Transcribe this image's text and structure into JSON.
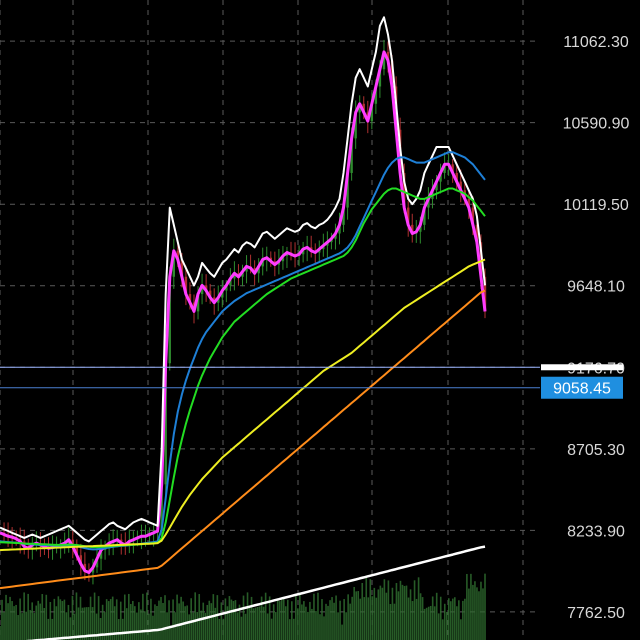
{
  "colors": {
    "background": "#000000",
    "grid": "#5a5a5a",
    "candle_up": "#2e8b2e",
    "candle_down": "#b03030",
    "price_line": "#4a7fd1",
    "price_badge": "#1f8fe0",
    "ref_line_badge": "#ffffff"
  },
  "chart_data": {
    "type": "line",
    "ylim": [
      7600,
      11300
    ],
    "y_ticks": [
      "11062.30",
      "10590.90",
      "10119.50",
      "9648.10",
      "9176.70",
      "8705.30",
      "8233.90",
      "7762.50"
    ],
    "y_tick_values": [
      11062.3,
      10590.9,
      10119.5,
      9648.1,
      9176.7,
      8705.3,
      8233.9,
      7762.5
    ],
    "current_price": "9058.45",
    "current_price_value": 9058.45,
    "reference_level": 9176.7,
    "x_count": 121,
    "grid": true,
    "series": [
      {
        "color": "#ff3cff",
        "values": [
          8220,
          8210,
          8200,
          8195,
          8185,
          8170,
          8140,
          8130,
          8150,
          8160,
          8150,
          8140,
          8130,
          8135,
          8140,
          8150,
          8160,
          8180,
          8140,
          8090,
          8040,
          8000,
          7990,
          8020,
          8070,
          8120,
          8140,
          8160,
          8170,
          8180,
          8160,
          8150,
          8170,
          8180,
          8190,
          8200,
          8200,
          8210,
          8220,
          8230,
          8500,
          9200,
          9700,
          9850,
          9800,
          9700,
          9600,
          9550,
          9500,
          9600,
          9650,
          9620,
          9580,
          9550,
          9580,
          9620,
          9650,
          9690,
          9720,
          9700,
          9730,
          9760,
          9750,
          9720,
          9760,
          9800,
          9810,
          9790,
          9770,
          9790,
          9820,
          9840,
          9830,
          9820,
          9830,
          9860,
          9870,
          9850,
          9840,
          9860,
          9880,
          9900,
          9920,
          9950,
          10000,
          10100,
          10300,
          10500,
          10650,
          10700,
          10650,
          10600,
          10700,
          10800,
          10900,
          11000,
          10950,
          10800,
          10550,
          10300,
          10100,
          10000,
          9950,
          9960,
          10000,
          10100,
          10150,
          10200,
          10250,
          10300,
          10350,
          10350,
          10300,
          10250,
          10200,
          10150,
          10100,
          10000,
          9900,
          9700,
          9500
        ]
      },
      {
        "color": "#ffffff",
        "values": [
          8250,
          8240,
          8230,
          8220,
          8210,
          8200,
          8190,
          8200,
          8210,
          8200,
          8190,
          8200,
          8210,
          8220,
          8230,
          8240,
          8250,
          8260,
          8240,
          8220,
          8200,
          8180,
          8170,
          8190,
          8210,
          8230,
          8250,
          8270,
          8280,
          8260,
          8250,
          8240,
          8260,
          8280,
          8290,
          8300,
          8290,
          8280,
          8270,
          8260,
          8700,
          9600,
          10100,
          10000,
          9900,
          9800,
          9750,
          9700,
          9650,
          9700,
          9780,
          9750,
          9720,
          9700,
          9740,
          9780,
          9800,
          9830,
          9860,
          9840,
          9880,
          9900,
          9890,
          9870,
          9910,
          9950,
          9960,
          9940,
          9920,
          9940,
          9960,
          9980,
          9970,
          9960,
          9970,
          10000,
          10010,
          9990,
          9980,
          10000,
          10010,
          10030,
          10060,
          10100,
          10150,
          10300,
          10500,
          10700,
          10850,
          10900,
          10850,
          10800,
          10900,
          11000,
          11150,
          11200,
          11100,
          10950,
          10700,
          10450,
          10250,
          10150,
          10120,
          10150,
          10200,
          10300,
          10350,
          10400,
          10450,
          10450,
          10450,
          10450,
          10400,
          10350,
          10300,
          10250,
          10200,
          10150,
          10050,
          9850,
          9650
        ]
      },
      {
        "color": "#1e7fd6",
        "values": [
          8170,
          8168,
          8166,
          8164,
          8162,
          8160,
          8157,
          8155,
          8153,
          8151,
          8150,
          8149,
          8148,
          8147,
          8146,
          8146,
          8147,
          8148,
          8146,
          8142,
          8137,
          8131,
          8126,
          8124,
          8125,
          8128,
          8131,
          8135,
          8139,
          8142,
          8144,
          8146,
          8148,
          8151,
          8154,
          8157,
          8160,
          8163,
          8166,
          8170,
          8240,
          8420,
          8620,
          8790,
          8920,
          9020,
          9100,
          9170,
          9230,
          9290,
          9340,
          9380,
          9410,
          9440,
          9470,
          9500,
          9520,
          9540,
          9560,
          9575,
          9590,
          9605,
          9615,
          9625,
          9635,
          9645,
          9655,
          9665,
          9675,
          9685,
          9695,
          9705,
          9715,
          9725,
          9735,
          9745,
          9755,
          9765,
          9775,
          9785,
          9795,
          9805,
          9815,
          9825,
          9835,
          9850,
          9870,
          9900,
          9940,
          9990,
          10040,
          10090,
          10140,
          10190,
          10240,
          10290,
          10330,
          10360,
          10380,
          10390,
          10390,
          10380,
          10370,
          10360,
          10360,
          10360,
          10370,
          10380,
          10390,
          10400,
          10410,
          10420,
          10420,
          10410,
          10400,
          10390,
          10370,
          10350,
          10320,
          10290,
          10260
        ]
      },
      {
        "color": "#22dd22",
        "values": [
          8165,
          8164,
          8163,
          8162,
          8161,
          8160,
          8158,
          8157,
          8156,
          8155,
          8154,
          8153,
          8152,
          8151,
          8150,
          8150,
          8151,
          8152,
          8151,
          8149,
          8146,
          8142,
          8139,
          8137,
          8137,
          8138,
          8140,
          8142,
          8144,
          8146,
          8147,
          8148,
          8149,
          8150,
          8152,
          8154,
          8156,
          8158,
          8160,
          8162,
          8190,
          8280,
          8410,
          8540,
          8660,
          8760,
          8850,
          8930,
          9000,
          9070,
          9130,
          9180,
          9230,
          9270,
          9310,
          9350,
          9380,
          9410,
          9440,
          9460,
          9480,
          9500,
          9520,
          9540,
          9560,
          9580,
          9600,
          9615,
          9630,
          9645,
          9660,
          9675,
          9690,
          9700,
          9710,
          9720,
          9730,
          9740,
          9750,
          9760,
          9770,
          9780,
          9790,
          9800,
          9810,
          9820,
          9840,
          9870,
          9910,
          9960,
          10010,
          10050,
          10090,
          10120,
          10150,
          10180,
          10200,
          10210,
          10210,
          10200,
          10190,
          10180,
          10170,
          10160,
          10150,
          10150,
          10160,
          10170,
          10180,
          10190,
          10200,
          10210,
          10210,
          10200,
          10190,
          10180,
          10160,
          10140,
          10110,
          10080,
          10050
        ]
      },
      {
        "color": "#eeee22",
        "values": [
          8120,
          8121,
          8122,
          8123,
          8124,
          8125,
          8126,
          8127,
          8128,
          8129,
          8130,
          8131,
          8132,
          8133,
          8134,
          8135,
          8136,
          8137,
          8138,
          8139,
          8140,
          8141,
          8142,
          8143,
          8144,
          8145,
          8146,
          8147,
          8148,
          8149,
          8150,
          8151,
          8152,
          8153,
          8154,
          8155,
          8156,
          8157,
          8158,
          8160,
          8175,
          8210,
          8250,
          8290,
          8330,
          8370,
          8405,
          8440,
          8470,
          8500,
          8530,
          8555,
          8580,
          8605,
          8630,
          8655,
          8675,
          8695,
          8715,
          8735,
          8755,
          8775,
          8795,
          8815,
          8835,
          8855,
          8875,
          8895,
          8915,
          8935,
          8955,
          8975,
          8995,
          9015,
          9035,
          9055,
          9075,
          9095,
          9115,
          9135,
          9155,
          9170,
          9185,
          9200,
          9215,
          9230,
          9245,
          9260,
          9280,
          9300,
          9320,
          9340,
          9360,
          9380,
          9400,
          9420,
          9440,
          9460,
          9480,
          9500,
          9520,
          9535,
          9550,
          9565,
          9580,
          9595,
          9610,
          9625,
          9640,
          9655,
          9670,
          9685,
          9700,
          9715,
          9730,
          9745,
          9760,
          9770,
          9780,
          9790,
          9800
        ]
      },
      {
        "color": "#ff8c1a",
        "values": [
          7900,
          7903,
          7906,
          7909,
          7912,
          7915,
          7918,
          7921,
          7924,
          7927,
          7930,
          7933,
          7936,
          7939,
          7942,
          7945,
          7948,
          7951,
          7954,
          7957,
          7960,
          7963,
          7966,
          7969,
          7972,
          7975,
          7978,
          7981,
          7984,
          7987,
          7990,
          7993,
          7996,
          7999,
          8002,
          8005,
          8008,
          8011,
          8014,
          8017,
          8030,
          8050,
          8070,
          8090,
          8110,
          8130,
          8150,
          8170,
          8190,
          8210,
          8230,
          8250,
          8270,
          8290,
          8310,
          8330,
          8350,
          8370,
          8390,
          8410,
          8430,
          8450,
          8470,
          8490,
          8510,
          8530,
          8550,
          8570,
          8590,
          8610,
          8630,
          8650,
          8670,
          8690,
          8710,
          8730,
          8750,
          8770,
          8790,
          8810,
          8830,
          8850,
          8870,
          8890,
          8910,
          8930,
          8950,
          8970,
          8990,
          9010,
          9030,
          9050,
          9070,
          9090,
          9110,
          9130,
          9150,
          9170,
          9190,
          9210,
          9230,
          9250,
          9270,
          9290,
          9310,
          9330,
          9350,
          9370,
          9390,
          9410,
          9430,
          9450,
          9470,
          9490,
          9510,
          9530,
          9550,
          9570,
          9590,
          9610,
          9620
        ]
      },
      {
        "color": "#ffffff",
        "values": [
          7580,
          7582,
          7584,
          7586,
          7588,
          7590,
          7592,
          7594,
          7596,
          7598,
          7600,
          7602,
          7604,
          7606,
          7608,
          7610,
          7612,
          7614,
          7616,
          7618,
          7620,
          7622,
          7624,
          7626,
          7628,
          7630,
          7632,
          7634,
          7636,
          7638,
          7640,
          7642,
          7644,
          7646,
          7648,
          7650,
          7652,
          7654,
          7656,
          7658,
          7662,
          7668,
          7674,
          7680,
          7686,
          7692,
          7698,
          7704,
          7710,
          7716,
          7722,
          7728,
          7734,
          7740,
          7746,
          7752,
          7758,
          7764,
          7770,
          7776,
          7782,
          7788,
          7794,
          7800,
          7806,
          7812,
          7818,
          7824,
          7830,
          7836,
          7842,
          7848,
          7854,
          7860,
          7866,
          7872,
          7878,
          7884,
          7890,
          7896,
          7902,
          7908,
          7914,
          7920,
          7926,
          7932,
          7938,
          7944,
          7950,
          7956,
          7962,
          7968,
          7974,
          7980,
          7986,
          7992,
          7998,
          8004,
          8010,
          8016,
          8022,
          8028,
          8034,
          8040,
          8046,
          8052,
          8058,
          8064,
          8070,
          8076,
          8082,
          8088,
          8094,
          8100,
          8106,
          8112,
          8118,
          8124,
          8130,
          8136,
          8140
        ]
      }
    ]
  }
}
